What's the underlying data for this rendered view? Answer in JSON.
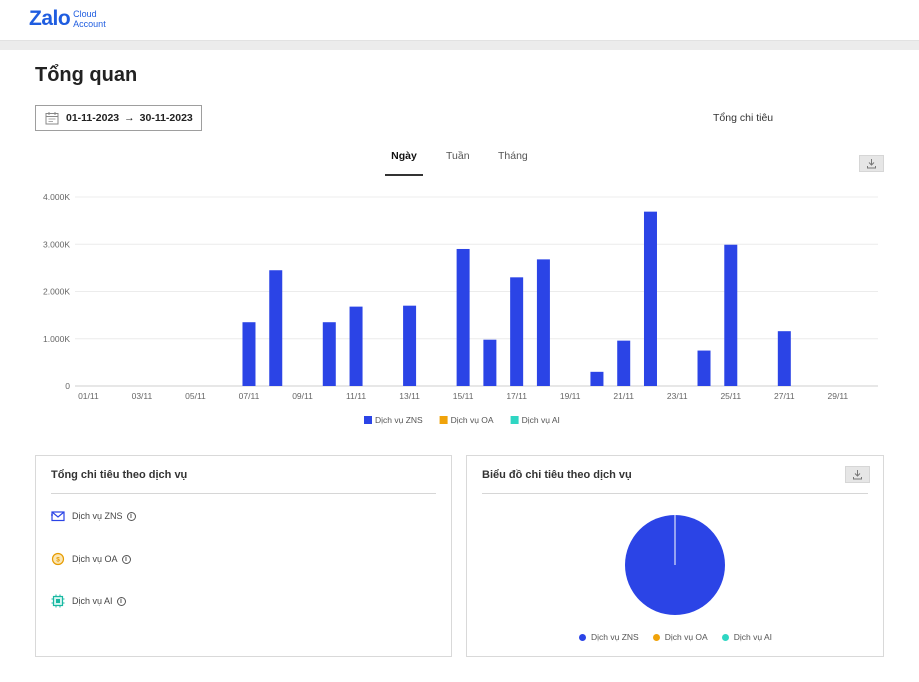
{
  "app": {
    "logo_main": "Zalo",
    "logo_sub_1": "Cloud",
    "logo_sub_2": "Account",
    "brand_color": "#1f5de0"
  },
  "page": {
    "title": "Tổng quan"
  },
  "date_range": {
    "start": "01-11-2023",
    "arrow": "→",
    "end": "30-11-2023"
  },
  "summary": {
    "total_label": "Tổng chi tiêu"
  },
  "tabs": [
    {
      "label": "Ngày",
      "active": true
    },
    {
      "label": "Tuần",
      "active": false
    },
    {
      "label": "Tháng",
      "active": false
    }
  ],
  "chart_data": {
    "type": "bar",
    "categories": [
      "01/11",
      "02/11",
      "03/11",
      "04/11",
      "05/11",
      "06/11",
      "07/11",
      "08/11",
      "09/11",
      "10/11",
      "11/11",
      "12/11",
      "13/11",
      "14/11",
      "15/11",
      "16/11",
      "17/11",
      "18/11",
      "19/11",
      "20/11",
      "21/11",
      "22/11",
      "23/11",
      "24/11",
      "25/11",
      "26/11",
      "27/11",
      "28/11",
      "29/11",
      "30/11"
    ],
    "tick_labels": [
      "01/11",
      "03/11",
      "05/11",
      "07/11",
      "09/11",
      "11/11",
      "13/11",
      "15/11",
      "17/11",
      "19/11",
      "21/11",
      "23/11",
      "25/11",
      "27/11",
      "29/11"
    ],
    "series": [
      {
        "name": "Dịch vụ ZNS",
        "color": "#2b44e6",
        "values": [
          0,
          0,
          0,
          0,
          0,
          0,
          1350,
          2450,
          0,
          1350,
          1680,
          0,
          1700,
          0,
          2900,
          980,
          2300,
          2680,
          0,
          300,
          960,
          3690,
          0,
          750,
          2990,
          0,
          1160,
          0,
          0,
          0
        ]
      },
      {
        "name": "Dịch vụ OA",
        "color": "#f0a30a",
        "values": [
          0,
          0,
          0,
          0,
          0,
          0,
          0,
          0,
          0,
          0,
          0,
          0,
          0,
          0,
          0,
          0,
          0,
          0,
          0,
          0,
          0,
          0,
          0,
          0,
          0,
          0,
          0,
          0,
          0,
          0
        ]
      },
      {
        "name": "Dịch vụ AI",
        "color": "#2fd6c3",
        "values": [
          0,
          0,
          0,
          0,
          0,
          0,
          0,
          0,
          0,
          0,
          0,
          0,
          0,
          0,
          0,
          0,
          0,
          0,
          0,
          0,
          0,
          0,
          0,
          0,
          0,
          0,
          0,
          0,
          0,
          0
        ]
      }
    ],
    "y_ticks": [
      "0",
      "1.000K",
      "2.000K",
      "3.000K",
      "4.000K"
    ],
    "ylim": [
      0,
      4000
    ],
    "grid": true,
    "legend_position": "bottom"
  },
  "spend_by_service": {
    "title": "Tổng chi tiêu theo dịch vụ",
    "items": [
      {
        "label": "Dịch vụ ZNS",
        "icon": "mail-icon"
      },
      {
        "label": "Dịch vụ OA",
        "icon": "oa-coin-icon"
      },
      {
        "label": "Dịch vụ AI",
        "icon": "chip-icon"
      }
    ],
    "info_glyph": "i"
  },
  "pie_chart": {
    "title": "Biểu đồ chi tiêu theo dịch vụ",
    "type": "pie",
    "slices": [
      {
        "name": "Dịch vụ ZNS",
        "value": 100,
        "color": "#2b44e6"
      },
      {
        "name": "Dịch vụ OA",
        "value": 0,
        "color": "#f0a30a"
      },
      {
        "name": "Dịch vụ AI",
        "value": 0,
        "color": "#2fd6c3"
      }
    ]
  }
}
